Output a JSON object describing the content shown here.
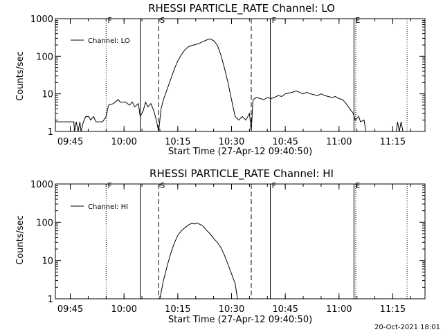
{
  "footer": {
    "timestamp": "20-Oct-2021 18:01"
  },
  "chart_data": [
    {
      "type": "line",
      "title": "RHESSI PARTICLE_RATE Channel: LO",
      "xlabel": "Start Time (27-Apr-12 09:40:50)",
      "ylabel": "Counts/sec",
      "yscale": "log",
      "ylim": [
        1,
        1000
      ],
      "xlim": [
        "09:40:50",
        "11:24:00"
      ],
      "x_ticks": [
        "09:45",
        "10:00",
        "10:15",
        "10:30",
        "10:45",
        "11:00",
        "11:15"
      ],
      "y_ticks": [
        "1",
        "10",
        "100",
        "1000"
      ],
      "legend": {
        "label": "Channel: LO",
        "position": "top-left"
      },
      "grid": false,
      "markers": [
        {
          "time": "09:55:00",
          "label": "F",
          "style": "dotted"
        },
        {
          "time": "10:04:30",
          "label": "",
          "style": "solid"
        },
        {
          "time": "10:09:40",
          "label": "S",
          "style": "dashed"
        },
        {
          "time": "10:35:30",
          "label": "",
          "style": "dashed"
        },
        {
          "time": "10:40:50",
          "label": "F",
          "style": "solid"
        },
        {
          "time": "11:04:10",
          "label": "E",
          "style": "solid"
        },
        {
          "time": "11:04:40",
          "label": "",
          "style": "dotted"
        },
        {
          "time": "11:19:00",
          "label": "",
          "style": "dotted"
        }
      ],
      "series": [
        {
          "name": "Channel: LO",
          "points": [
            [
              "09:40:50",
              1.8
            ],
            [
              "09:46:00",
              1.8
            ],
            [
              "09:46:10",
              1.0
            ],
            [
              "09:46:40",
              1.8
            ],
            [
              "09:47:10",
              1.0
            ],
            [
              "09:47:40",
              1.8
            ],
            [
              "09:48:00",
              1.0
            ],
            [
              "09:48:40",
              1.8
            ],
            [
              "09:49:20",
              2.5
            ],
            [
              "09:50:10",
              2.5
            ],
            [
              "09:50:40",
              2.0
            ],
            [
              "09:51:30",
              2.5
            ],
            [
              "09:52:10",
              1.8
            ],
            [
              "09:54:00",
              1.8
            ],
            [
              "09:55:00",
              2.5
            ],
            [
              "09:55:40",
              5.0
            ],
            [
              "09:57:00",
              5.5
            ],
            [
              "09:58:20",
              7.0
            ],
            [
              "09:59:00",
              6.0
            ],
            [
              "10:00:30",
              6.0
            ],
            [
              "10:01:30",
              5.0
            ],
            [
              "10:02:20",
              6.0
            ],
            [
              "10:03:00",
              4.5
            ],
            [
              "10:04:00",
              5.5
            ],
            [
              "10:04:30",
              2.5
            ],
            [
              "10:05:20",
              3.5
            ],
            [
              "10:06:00",
              6.0
            ],
            [
              "10:06:40",
              4.5
            ],
            [
              "10:07:30",
              5.5
            ],
            [
              "10:08:20",
              3.5
            ],
            [
              "10:09:00",
              2.0
            ],
            [
              "10:09:40",
              1.0
            ],
            [
              "10:10:20",
              4.0
            ],
            [
              "10:11:00",
              7.0
            ],
            [
              "10:12:00",
              13
            ],
            [
              "10:13:00",
              24
            ],
            [
              "10:14:00",
              45
            ],
            [
              "10:15:00",
              75
            ],
            [
              "10:16:00",
              110
            ],
            [
              "10:17:00",
              150
            ],
            [
              "10:18:00",
              180
            ],
            [
              "10:19:00",
              195
            ],
            [
              "10:20:00",
              205
            ],
            [
              "10:21:00",
              220
            ],
            [
              "10:22:00",
              245
            ],
            [
              "10:23:00",
              270
            ],
            [
              "10:24:00",
              290
            ],
            [
              "10:25:00",
              260
            ],
            [
              "10:26:00",
              200
            ],
            [
              "10:27:00",
              110
            ],
            [
              "10:28:00",
              50
            ],
            [
              "10:29:00",
              20
            ],
            [
              "10:30:00",
              7.0
            ],
            [
              "10:31:00",
              2.5
            ],
            [
              "10:32:00",
              2.0
            ],
            [
              "10:33:00",
              2.5
            ],
            [
              "10:34:00",
              2.0
            ],
            [
              "10:35:00",
              3.0
            ],
            [
              "10:35:30",
              1.0
            ],
            [
              "10:36:00",
              7.0
            ],
            [
              "10:37:00",
              8.0
            ],
            [
              "10:38:00",
              7.5
            ],
            [
              "10:39:00",
              7.0
            ],
            [
              "10:40:00",
              8.0
            ],
            [
              "10:41:00",
              7.5
            ],
            [
              "10:42:00",
              8.0
            ],
            [
              "10:43:00",
              9.0
            ],
            [
              "10:44:00",
              8.5
            ],
            [
              "10:45:00",
              10
            ],
            [
              "10:46:00",
              10.5
            ],
            [
              "10:47:00",
              11
            ],
            [
              "10:48:00",
              12
            ],
            [
              "10:49:00",
              11
            ],
            [
              "10:50:00",
              10
            ],
            [
              "10:51:00",
              11
            ],
            [
              "10:52:00",
              10
            ],
            [
              "10:53:00",
              9.5
            ],
            [
              "10:54:00",
              9.0
            ],
            [
              "10:55:00",
              10
            ],
            [
              "10:56:00",
              9.0
            ],
            [
              "10:57:00",
              8.5
            ],
            [
              "10:58:00",
              8.0
            ],
            [
              "10:59:00",
              8.5
            ],
            [
              "11:00:00",
              7.5
            ],
            [
              "11:01:00",
              7.0
            ],
            [
              "11:02:00",
              5.5
            ],
            [
              "11:03:00",
              4.0
            ],
            [
              "11:04:00",
              3.0
            ],
            [
              "11:04:30",
              2.0
            ],
            [
              "11:05:30",
              2.5
            ],
            [
              "11:06:00",
              1.8
            ],
            [
              "11:07:00",
              2.0
            ],
            [
              "11:07:30",
              1.0
            ],
            [
              "11:16:00",
              1.0
            ],
            [
              "11:16:20",
              1.8
            ],
            [
              "11:16:50",
              1.0
            ],
            [
              "11:17:20",
              1.8
            ],
            [
              "11:17:50",
              1.0
            ],
            [
              "11:18:30",
              1.0
            ]
          ]
        }
      ]
    },
    {
      "type": "line",
      "title": "RHESSI PARTICLE_RATE Channel: HI",
      "xlabel": "Start Time (27-Apr-12 09:40:50)",
      "ylabel": "Counts/sec",
      "yscale": "log",
      "ylim": [
        1,
        1000
      ],
      "xlim": [
        "09:40:50",
        "11:24:00"
      ],
      "x_ticks": [
        "09:45",
        "10:00",
        "10:15",
        "10:30",
        "10:45",
        "11:00",
        "11:15"
      ],
      "y_ticks": [
        "1",
        "10",
        "100",
        "1000"
      ],
      "legend": {
        "label": "Channel: HI",
        "position": "top-left"
      },
      "grid": false,
      "markers": [
        {
          "time": "09:55:00",
          "label": "F",
          "style": "dotted"
        },
        {
          "time": "10:04:30",
          "label": "",
          "style": "solid"
        },
        {
          "time": "10:09:40",
          "label": "S",
          "style": "dashed"
        },
        {
          "time": "10:35:30",
          "label": "",
          "style": "dashed"
        },
        {
          "time": "10:40:50",
          "label": "F",
          "style": "solid"
        },
        {
          "time": "11:04:10",
          "label": "E",
          "style": "solid"
        },
        {
          "time": "11:04:40",
          "label": "",
          "style": "dotted"
        },
        {
          "time": "11:19:00",
          "label": "",
          "style": "dotted"
        }
      ],
      "series": [
        {
          "name": "Channel: HI",
          "points": [
            [
              "10:10:00",
              1.0
            ],
            [
              "10:11:00",
              3.0
            ],
            [
              "10:12:00",
              7.0
            ],
            [
              "10:13:00",
              15
            ],
            [
              "10:14:00",
              28
            ],
            [
              "10:15:00",
              45
            ],
            [
              "10:16:00",
              60
            ],
            [
              "10:17:00",
              72
            ],
            [
              "10:18:00",
              85
            ],
            [
              "10:19:00",
              95
            ],
            [
              "10:19:40",
              90
            ],
            [
              "10:20:20",
              97
            ],
            [
              "10:21:00",
              90
            ],
            [
              "10:22:00",
              80
            ],
            [
              "10:23:00",
              62
            ],
            [
              "10:24:00",
              50
            ],
            [
              "10:25:00",
              38
            ],
            [
              "10:26:00",
              30
            ],
            [
              "10:27:00",
              22
            ],
            [
              "10:28:00",
              14
            ],
            [
              "10:29:00",
              8.0
            ],
            [
              "10:30:00",
              4.5
            ],
            [
              "10:31:00",
              2.5
            ],
            [
              "10:31:40",
              1.0
            ]
          ]
        }
      ]
    }
  ]
}
